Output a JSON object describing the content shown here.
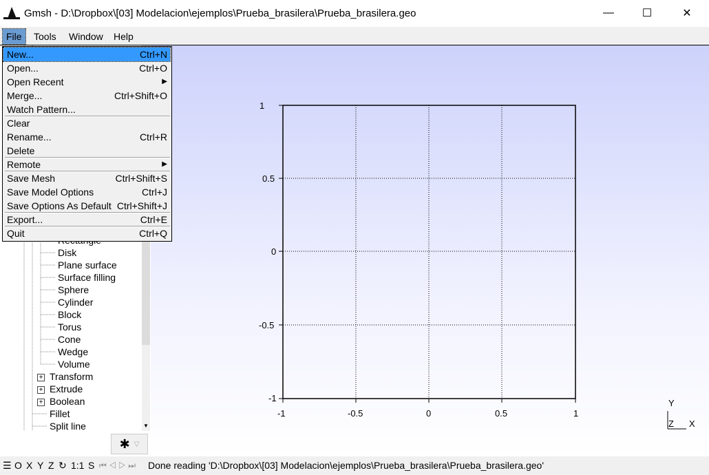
{
  "window": {
    "title": "Gmsh - D:\\Dropbox\\[03] Modelacion\\ejemplos\\Prueba_brasilera\\Prueba_brasilera.geo",
    "minimize": "—",
    "maximize": "☐",
    "close": "✕"
  },
  "menubar": [
    "File",
    "Tools",
    "Window",
    "Help"
  ],
  "file_menu": [
    {
      "label": "New...",
      "shortcut": "Ctrl+N"
    },
    {
      "label": "Open...",
      "shortcut": "Ctrl+O"
    },
    {
      "label": "Open Recent",
      "shortcut": "",
      "submenu": true
    },
    {
      "label": "Merge...",
      "shortcut": "Ctrl+Shift+O"
    },
    {
      "label": "Watch Pattern...",
      "shortcut": ""
    },
    {
      "label": "Clear",
      "shortcut": ""
    },
    {
      "label": "Rename...",
      "shortcut": "Ctrl+R"
    },
    {
      "label": "Delete",
      "shortcut": ""
    },
    {
      "label": "Remote",
      "shortcut": "",
      "submenu": true
    },
    {
      "label": "Save Mesh",
      "shortcut": "Ctrl+Shift+S"
    },
    {
      "label": "Save Model Options",
      "shortcut": "Ctrl+J"
    },
    {
      "label": "Save Options As Default",
      "shortcut": "Ctrl+Shift+J"
    },
    {
      "label": "Export...",
      "shortcut": "Ctrl+E"
    },
    {
      "label": "Quit",
      "shortcut": "Ctrl+Q"
    }
  ],
  "tree": {
    "partial_item": "Rectangle",
    "items": [
      "Disk",
      "Plane surface",
      "Surface filling",
      "Sphere",
      "Cylinder",
      "Block",
      "Torus",
      "Cone",
      "Wedge",
      "Volume"
    ],
    "groups": [
      "Transform",
      "Extrude",
      "Boolean"
    ],
    "tail": [
      "Fillet",
      "Split line"
    ]
  },
  "plot": {
    "y_ticks": [
      "1",
      "0.5",
      "0",
      "-0.5",
      "-1"
    ],
    "x_ticks": [
      "-1",
      "-0.5",
      "0",
      "0.5",
      "1"
    ],
    "axes": {
      "y": "Y",
      "z": "Z",
      "x": "X"
    }
  },
  "statusbar": {
    "menu_icon": "☰",
    "views": [
      "O",
      "X",
      "Y",
      "Z"
    ],
    "rotate_icon": "↻",
    "scale": "1:1",
    "s_label": "S",
    "nav": "⏮ ◁ ▷ ⏭",
    "message": "Done reading 'D:\\Dropbox\\[03] Modelacion\\ejemplos\\Prueba_brasilera\\Prueba_brasilera.geo'"
  }
}
